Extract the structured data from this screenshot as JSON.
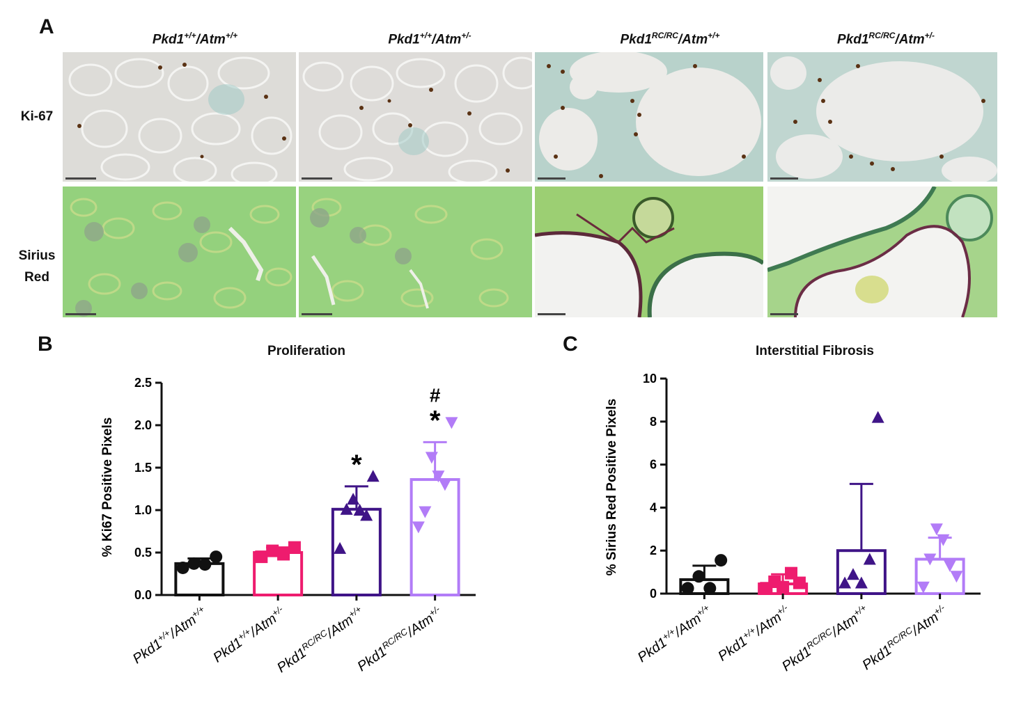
{
  "panels": {
    "a": {
      "letter": "A",
      "columns": [
        {
          "gene": "Pkd1",
          "sup1": "+/+",
          "atm": "/Atm",
          "sup2": "+/+"
        },
        {
          "gene": "Pkd1",
          "sup1": "+/+",
          "atm": "/Atm",
          "sup2": "+/-"
        },
        {
          "gene": "Pkd1",
          "sup1": "RC/RC",
          "atm": "/Atm",
          "sup2": "+/+"
        },
        {
          "gene": "Pkd1",
          "sup1": "RC/RC",
          "atm": "/Atm",
          "sup2": "+/-"
        }
      ],
      "rows": [
        {
          "label": "Ki-67"
        },
        {
          "label_line1": "Sirius",
          "label_line2": "Red"
        }
      ]
    },
    "b": {
      "letter": "B"
    },
    "c": {
      "letter": "C"
    }
  },
  "colors": {
    "wt": "#111111",
    "het": "#ee1c6e",
    "rc": "#3f1487",
    "rc_het": "#b27cf7",
    "ki67_bg": "#dcdcd8",
    "sirius_bg": "#8fd07d"
  },
  "chart_data": [
    {
      "type": "bar",
      "title": "Proliferation",
      "ylabel": "% Ki67 Positive Pixels",
      "ylim": [
        0,
        2.5
      ],
      "yticks": [
        "0.0",
        "0.5",
        "1.0",
        "1.5",
        "2.0",
        "2.5"
      ],
      "categories": [
        {
          "gene": "Pkd1",
          "sup1": "+/+",
          "atm": "/Atm",
          "sup2": "+/+"
        },
        {
          "gene": "Pkd1",
          "sup1": "+/+",
          "atm": "/Atm",
          "sup2": "+/-"
        },
        {
          "gene": "Pkd1",
          "sup1": "RC/RC",
          "atm": "/Atm",
          "sup2": "+/+"
        },
        {
          "gene": "Pkd1",
          "sup1": "RC/RC",
          "atm": "/Atm",
          "sup2": "+/-"
        }
      ],
      "bars": [
        {
          "mean": 0.37,
          "err": 0.06,
          "marker": "circle",
          "color": "#111111",
          "points": [
            0.32,
            0.37,
            0.36,
            0.45
          ],
          "sig": []
        },
        {
          "mean": 0.5,
          "err": 0.06,
          "marker": "square",
          "color": "#ee1c6e",
          "points": [
            0.45,
            0.52,
            0.48,
            0.56
          ],
          "sig": []
        },
        {
          "mean": 1.01,
          "err": 0.27,
          "marker": "triangle-up",
          "color": "#3f1487",
          "points": [
            0.55,
            1.01,
            1.13,
            1.0,
            0.94,
            1.4
          ],
          "sig": [
            "*"
          ]
        },
        {
          "mean": 1.36,
          "err": 0.44,
          "marker": "triangle-down",
          "color": "#b27cf7",
          "points": [
            0.8,
            0.98,
            1.62,
            1.4,
            1.3,
            2.03
          ],
          "sig": [
            "*",
            "#"
          ]
        }
      ]
    },
    {
      "type": "bar",
      "title": "Interstitial Fibrosis",
      "ylabel": "% Sirius Red Positive Pixels",
      "ylim": [
        0,
        10
      ],
      "yticks": [
        "0",
        "2",
        "4",
        "6",
        "8",
        "10"
      ],
      "categories": [
        {
          "gene": "Pkd1",
          "sup1": "+/+",
          "atm": "/Atm",
          "sup2": "+/+"
        },
        {
          "gene": "Pkd1",
          "sup1": "+/+",
          "atm": "/Atm",
          "sup2": "+/-"
        },
        {
          "gene": "Pkd1",
          "sup1": "RC/RC",
          "atm": "/Atm",
          "sup2": "+/+"
        },
        {
          "gene": "Pkd1",
          "sup1": "RC/RC",
          "atm": "/Atm",
          "sup2": "+/-"
        }
      ],
      "bars": [
        {
          "mean": 0.65,
          "err": 0.65,
          "marker": "circle",
          "color": "#111111",
          "points": [
            0.25,
            0.8,
            0.25,
            1.55
          ],
          "sig": []
        },
        {
          "mean": 0.45,
          "err": 0.45,
          "marker": "square",
          "color": "#ee1c6e",
          "points": [
            0.25,
            0.55,
            0.3,
            0.95,
            0.5
          ],
          "sig": []
        },
        {
          "mean": 2.0,
          "err": 3.1,
          "marker": "triangle-up",
          "color": "#3f1487",
          "points": [
            0.5,
            0.9,
            0.5,
            1.6,
            8.2
          ],
          "sig": []
        },
        {
          "mean": 1.6,
          "err": 1.0,
          "marker": "triangle-down",
          "color": "#b27cf7",
          "points": [
            0.3,
            1.6,
            3.0,
            2.5,
            1.3,
            0.8
          ],
          "sig": []
        }
      ]
    }
  ]
}
